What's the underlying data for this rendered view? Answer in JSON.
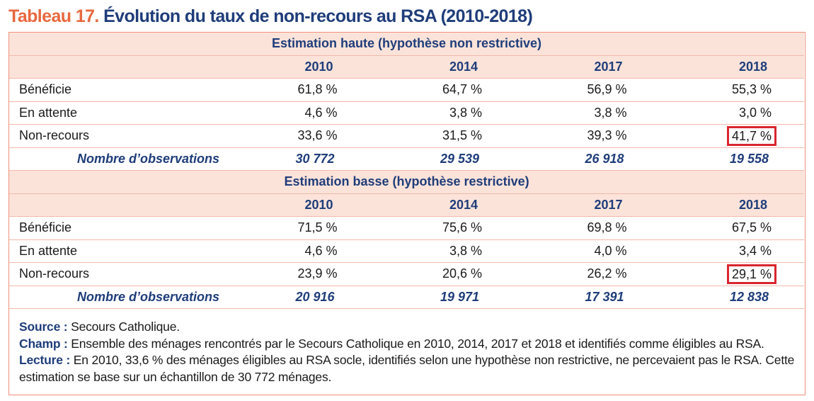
{
  "title": {
    "number": "Tableau 17.",
    "text": "Évolution du taux de non-recours au RSA (2010-2018)"
  },
  "years": [
    "2010",
    "2014",
    "2017",
    "2018"
  ],
  "sections": [
    {
      "heading": "Estimation haute (hypothèse non restrictive)",
      "rows": [
        {
          "label": "Bénéficie",
          "values": [
            "61,8 %",
            "64,7 %",
            "56,9 %",
            "55,3 %"
          ]
        },
        {
          "label": "En attente",
          "values": [
            "4,6 %",
            "3,8 %",
            "3,8 %",
            "3,0 %"
          ]
        },
        {
          "label": "Non-recours",
          "values": [
            "33,6 %",
            "31,5 %",
            "39,3 %",
            "41,7 %"
          ]
        }
      ],
      "observations": {
        "label": "Nombre d’observations",
        "values": [
          "30 772",
          "29 539",
          "26 918",
          "19 558"
        ]
      }
    },
    {
      "heading": "Estimation basse (hypothèse restrictive)",
      "rows": [
        {
          "label": "Bénéficie",
          "values": [
            "71,5 %",
            "75,6 %",
            "69,8 %",
            "67,5 %"
          ]
        },
        {
          "label": "En attente",
          "values": [
            "4,6 %",
            "3,8 %",
            "4,0 %",
            "3,4 %"
          ]
        },
        {
          "label": "Non-recours",
          "values": [
            "23,9 %",
            "20,6 %",
            "26,2 %",
            "29,1 %"
          ]
        }
      ],
      "observations": {
        "label": "Nombre d’observations",
        "values": [
          "20 916",
          "19 971",
          "17 391",
          "12 838"
        ]
      }
    }
  ],
  "notes": {
    "source_label": "Source :",
    "source_text": "Secours Catholique.",
    "champ_label": "Champ :",
    "champ_text": "Ensemble des ménages rencontrés par le Secours Catholique en 2010, 2014, 2017 et 2018 et identifiés comme éligibles au RSA.",
    "lecture_label": "Lecture :",
    "lecture_text": "En 2010, 33,6 % des ménages éligibles au RSA socle, identifiés selon une hypothèse non restrictive, ne percevaient pas le RSA. Cette estimation se base sur un échantillon de 30 772 ménages."
  },
  "colors": {
    "title_number": "#e8683f",
    "title_text": "#1f3d7a",
    "header_fill": "#fce3da",
    "border": "#f0907a",
    "highlight_box": "#d9252f"
  }
}
